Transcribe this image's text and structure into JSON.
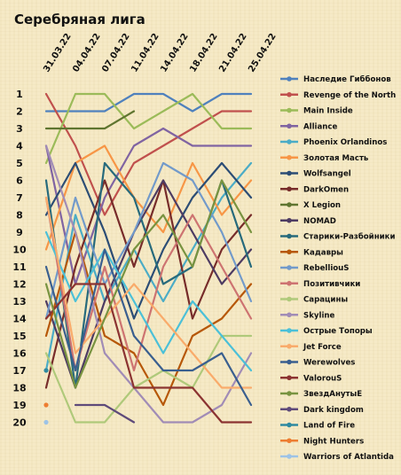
{
  "chart_data": {
    "type": "line",
    "title": "Серебряная лига",
    "x": [
      "31.03.22",
      "04.04.22",
      "07.04.22",
      "11.04.22",
      "14.04.22",
      "18.04.22",
      "21.04.22",
      "25.04.22"
    ],
    "y_ticks": [
      1,
      2,
      3,
      4,
      5,
      6,
      7,
      8,
      9,
      10,
      11,
      12,
      13,
      14,
      15,
      16,
      17,
      18,
      19,
      20
    ],
    "ylim": [
      1,
      20
    ],
    "y_inverted": true,
    "grid": false,
    "legend_position": "right",
    "series": [
      {
        "name": "Наследие Гиббонов",
        "color": "#4f81bd",
        "values": [
          2,
          2,
          2,
          1,
          1,
          2,
          1,
          1
        ]
      },
      {
        "name": "Revenge of the North",
        "color": "#c0504d",
        "values": [
          1,
          4,
          8,
          5,
          4,
          3,
          2,
          2
        ]
      },
      {
        "name": "Main Inside",
        "color": "#9bbb59",
        "values": [
          5,
          1,
          1,
          3,
          2,
          1,
          3,
          3
        ]
      },
      {
        "name": "Alliance",
        "color": "#8064a2",
        "values": [
          4,
          12,
          7,
          4,
          3,
          4,
          4,
          4
        ]
      },
      {
        "name": "Phoenix Orlandinos",
        "color": "#4bacc6",
        "values": [
          17,
          8,
          13,
          10,
          13,
          10,
          7,
          5
        ]
      },
      {
        "name": "Золотая Масть",
        "color": "#f79646",
        "values": [
          10,
          5,
          4,
          7,
          9,
          5,
          8,
          6
        ]
      },
      {
        "name": "Wolfsangel",
        "color": "#2c4d75",
        "values": [
          8,
          5,
          9,
          14,
          10,
          7,
          5,
          7
        ]
      },
      {
        "name": "DarkOmen",
        "color": "#772c2a",
        "values": [
          18,
          11,
          6,
          11,
          6,
          14,
          10,
          8
        ]
      },
      {
        "name": "X Legion",
        "color": "#5f7530",
        "values": [
          3,
          3,
          3,
          2,
          null,
          null,
          null,
          null
        ]
      },
      {
        "name": "NOMAD",
        "color": "#4d3b62",
        "values": [
          13,
          18,
          13,
          9,
          6,
          9,
          12,
          10
        ]
      },
      {
        "name": "Старики-Разбойники",
        "color": "#276a7c",
        "values": [
          6,
          18,
          5,
          7,
          12,
          11,
          6,
          11
        ]
      },
      {
        "name": "Кадавры",
        "color": "#b65708",
        "values": [
          15,
          9,
          15,
          16,
          19,
          15,
          14,
          12
        ]
      },
      {
        "name": "RebelliouS",
        "color": "#729aca",
        "values": [
          14,
          7,
          12,
          9,
          5,
          6,
          9,
          13
        ]
      },
      {
        "name": "Позитивчики",
        "color": "#cd7371",
        "values": [
          7,
          17,
          11,
          17,
          11,
          8,
          11,
          14
        ]
      },
      {
        "name": "Сарацины",
        "color": "#afc97a",
        "values": [
          16,
          20,
          20,
          18,
          17,
          18,
          15,
          15
        ]
      },
      {
        "name": "Skyline",
        "color": "#a18cb6",
        "values": [
          4,
          9,
          16,
          18,
          20,
          20,
          19,
          16
        ]
      },
      {
        "name": "Острые Топоры",
        "color": "#4bc0d8",
        "values": [
          9,
          13,
          10,
          13,
          16,
          13,
          15,
          17
        ]
      },
      {
        "name": "Jet Force",
        "color": "#f9ab6b",
        "values": [
          7,
          16,
          14,
          12,
          14,
          16,
          18,
          18
        ]
      },
      {
        "name": "Werewolves",
        "color": "#3a5f8f",
        "values": [
          11,
          17,
          10,
          15,
          17,
          17,
          16,
          19
        ]
      },
      {
        "name": "ValorouS",
        "color": "#8b3331",
        "values": [
          14,
          12,
          12,
          18,
          18,
          18,
          20,
          20
        ]
      },
      {
        "name": "ЗвездАнутыЕ",
        "color": "#789340",
        "values": [
          12,
          18,
          14,
          10,
          8,
          11,
          6,
          9
        ]
      },
      {
        "name": "Dark kingdom",
        "color": "#5e4a7a",
        "values": [
          null,
          19,
          19,
          20,
          null,
          null,
          null,
          null
        ]
      },
      {
        "name": "Land of Fire",
        "color": "#2f8aa0",
        "values": [
          17,
          null,
          null,
          null,
          null,
          null,
          null,
          null
        ]
      },
      {
        "name": "Night Hunters",
        "color": "#ed7d31",
        "values": [
          19,
          null,
          null,
          null,
          null,
          null,
          null,
          null
        ]
      },
      {
        "name": "Warriors of Atlantida",
        "color": "#9dc3e6",
        "values": [
          20,
          null,
          null,
          null,
          null,
          null,
          null,
          null
        ]
      }
    ]
  }
}
